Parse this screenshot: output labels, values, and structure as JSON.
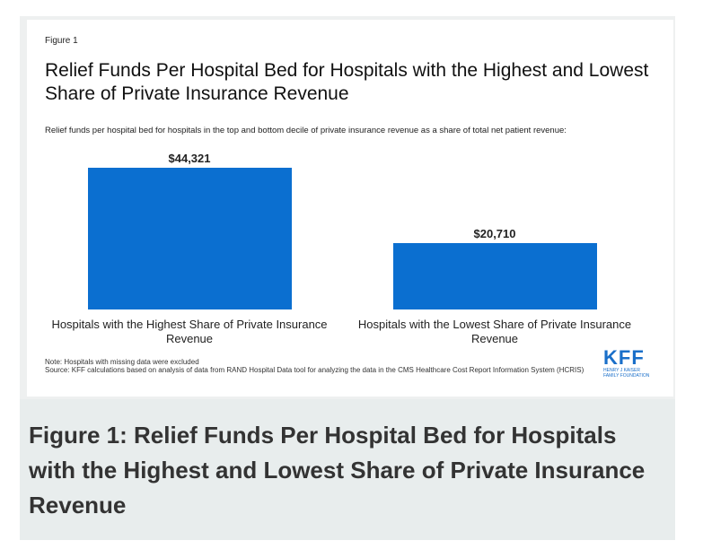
{
  "chart_data": {
    "type": "bar",
    "figure_label": "Figure 1",
    "title": "Relief Funds Per Hospital Bed for Hospitals with the Highest and Lowest Share of Private Insurance Revenue",
    "subtitle": "Relief funds per hospital bed for hospitals in the top and bottom decile of private insurance revenue as a share of total net patient revenue:",
    "categories": [
      "Hospitals with the Highest Share of Private Insurance Revenue",
      "Hospitals with the Lowest Share of Private Insurance Revenue"
    ],
    "values": [
      44321,
      20710
    ],
    "value_labels": [
      "$44,321",
      "$20,710"
    ],
    "color": "#0b6fd0",
    "note": "Note: Hospitals with missing data were excluded",
    "source": "Source: KFF calculations based on analysis of data from RAND Hospital Data tool for analyzing the data in the CMS Healthcare Cost Report Information System (HCRIS)"
  },
  "logo": {
    "name": "KFF",
    "text": "HENRY J KAISER FAMILY FOUNDATION"
  },
  "caption": "Figure 1: Relief Funds Per Hospital Bed for Hospitals with the Highest and Lowest Share of Private Insurance Revenue"
}
